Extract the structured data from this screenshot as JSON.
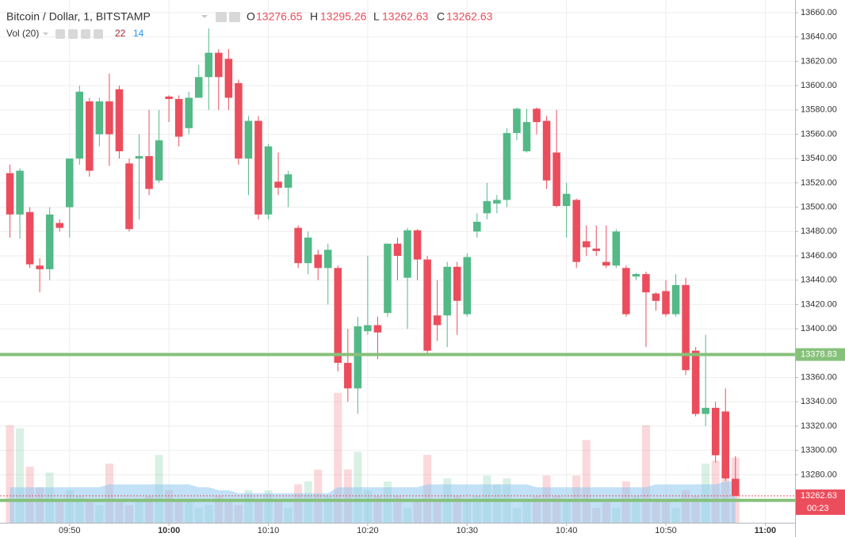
{
  "chart_data": {
    "type": "candlestick",
    "title": "Bitcoin / Dollar, 1, BITSTAMP",
    "ohlc_letters": {
      "open": "O",
      "high": "H",
      "low": "L",
      "close": "C"
    },
    "volume_title": "Vol (20)",
    "x": [
      "09:44",
      "09:45",
      "09:46",
      "09:47",
      "09:48",
      "09:49",
      "09:50",
      "09:51",
      "09:52",
      "09:53",
      "09:54",
      "09:55",
      "09:56",
      "09:57",
      "09:58",
      "09:59",
      "10:00",
      "10:01",
      "10:02",
      "10:03",
      "10:04",
      "10:05",
      "10:06",
      "10:07",
      "10:08",
      "10:09",
      "10:10",
      "10:11",
      "10:12",
      "10:13",
      "10:14",
      "10:15",
      "10:16",
      "10:17",
      "10:18",
      "10:19",
      "10:20",
      "10:21",
      "10:22",
      "10:23",
      "10:24",
      "10:25",
      "10:26",
      "10:27",
      "10:28",
      "10:29",
      "10:30",
      "10:31",
      "10:32",
      "10:33",
      "10:34",
      "10:35",
      "10:36",
      "10:37",
      "10:38",
      "10:39",
      "10:40",
      "10:41",
      "10:42",
      "10:43",
      "10:44",
      "10:45",
      "10:46",
      "10:47",
      "10:48",
      "10:49",
      "10:50",
      "10:51",
      "10:52",
      "10:53",
      "10:54",
      "10:55",
      "10:56",
      "10:57"
    ],
    "open": [
      13528,
      13494,
      13496,
      13452,
      13449,
      13487,
      13500,
      13540,
      13587,
      13560,
      13587,
      13597,
      13536,
      13540,
      13542,
      13522,
      13591,
      13589,
      13565,
      13590,
      13607,
      13627,
      13622,
      13602,
      13540,
      13571,
      13494,
      13521,
      13516,
      13483,
      13454,
      13461,
      13450,
      13450,
      13372,
      13351,
      13398,
      13403,
      13413,
      13470,
      13442,
      13481,
      13457,
      13411,
      13411,
      13451,
      13412,
      13480,
      13495,
      13503,
      13506,
      13561,
      13546,
      13581,
      13571,
      13545,
      13501,
      13506,
      13472,
      13466,
      13455,
      13452,
      13450,
      13443,
      13445,
      13429,
      13431,
      13412,
      13436,
      13382,
      13330,
      13335,
      13332,
      13276.65
    ],
    "high": [
      13535,
      13532,
      13500,
      13458,
      13500,
      13490,
      13540,
      13600,
      13590,
      13590,
      13610,
      13600,
      13540,
      13560,
      13580,
      13580,
      13592,
      13592,
      13595,
      13617,
      13647,
      13630,
      13630,
      13605,
      13575,
      13575,
      13552,
      13545,
      13530,
      13485,
      13480,
      13465,
      13470,
      13452,
      13400,
      13410,
      13460,
      13410,
      13470,
      13475,
      13483,
      13482,
      13460,
      13440,
      13455,
      13455,
      13462,
      13495,
      13520,
      13510,
      13565,
      13582,
      13581,
      13582,
      13575,
      13580,
      13520,
      13507,
      13485,
      13485,
      13485,
      13482,
      13452,
      13446,
      13447,
      13430,
      13440,
      13445,
      13442,
      13385,
      13395,
      13340,
      13351,
      13295.26
    ],
    "low": [
      13475,
      13474,
      13450,
      13430,
      13440,
      13480,
      13475,
      13535,
      13525,
      13550,
      13534,
      13540,
      13480,
      13490,
      13510,
      13520,
      13570,
      13550,
      13560,
      13590,
      13580,
      13580,
      13580,
      13535,
      13510,
      13490,
      13490,
      13510,
      13500,
      13450,
      13445,
      13440,
      13420,
      13365,
      13340,
      13330,
      13395,
      13375,
      13410,
      13440,
      13400,
      13440,
      13380,
      13390,
      13385,
      13395,
      13410,
      13475,
      13490,
      13495,
      13500,
      13555,
      13545,
      13560,
      13515,
      13500,
      13475,
      13450,
      13460,
      13460,
      13450,
      13450,
      13410,
      13440,
      13385,
      13415,
      13410,
      13410,
      13362,
      13328,
      13320,
      13290,
      13275,
      13262.63
    ],
    "close": [
      13494,
      13530,
      13453,
      13449,
      13494,
      13483,
      13540,
      13595,
      13530,
      13587,
      13560,
      13546,
      13482,
      13542,
      13515,
      13555,
      13589,
      13558,
      13590,
      13607,
      13627,
      13607,
      13590,
      13540,
      13571,
      13494,
      13550,
      13516,
      13527,
      13454,
      13475,
      13450,
      13465,
      13372,
      13351,
      13402,
      13403,
      13397,
      13470,
      13460,
      13481,
      13457,
      13382,
      13403,
      13451,
      13423,
      13459,
      13488,
      13505,
      13506,
      13561,
      13581,
      13570,
      13570,
      13522,
      13501,
      13511,
      13455,
      13467,
      13464,
      13452,
      13480,
      13412,
      13445,
      13430,
      13423,
      13412,
      13436,
      13366,
      13330,
      13335,
      13296,
      13277,
      13262.63
    ],
    "volume": [
      33,
      32,
      19,
      12,
      17,
      8,
      11,
      9,
      8,
      6,
      20,
      8,
      6,
      8,
      9,
      23,
      11,
      8,
      8,
      5,
      6,
      9,
      8,
      6,
      11,
      8,
      11,
      8,
      5,
      13,
      14,
      18,
      9,
      44,
      18,
      24,
      11,
      9,
      14,
      9,
      5,
      8,
      23,
      8,
      15,
      9,
      8,
      9,
      16,
      13,
      15,
      5,
      8,
      9,
      16,
      9,
      8,
      16,
      28,
      5,
      8,
      5,
      14,
      9,
      33,
      8,
      8,
      5,
      11,
      9,
      20,
      21,
      19,
      22
    ],
    "volume_ma": [
      12,
      12,
      12,
      12,
      12,
      12,
      12,
      12,
      12,
      12,
      13,
      13,
      13,
      13,
      13,
      13,
      13,
      13,
      13,
      12,
      12,
      11,
      11,
      10,
      10,
      10,
      10,
      10,
      10,
      10,
      10,
      10,
      10,
      12,
      12,
      12,
      12,
      12,
      12,
      12,
      12,
      12,
      13,
      13,
      13,
      13,
      13,
      13,
      13,
      13,
      13,
      13,
      13,
      12,
      12,
      12,
      12,
      12,
      12,
      12,
      12,
      12,
      12,
      12,
      12,
      13,
      13,
      13,
      13,
      13,
      13,
      13,
      14,
      14
    ],
    "volume_ylim": [
      0,
      177
    ],
    "xlim": [
      "09:43",
      "11:03"
    ],
    "xticks": [
      "09:50",
      "10:00",
      "10:10",
      "10:20",
      "10:30",
      "10:40",
      "10:50",
      "11:00"
    ],
    "ylim": [
      13240.5,
      13670.4
    ],
    "yticks": [
      {
        "value": 13280,
        "label": "13280.00"
      },
      {
        "value": 13300,
        "label": "13300.00"
      },
      {
        "value": 13320,
        "label": "13320.00"
      },
      {
        "value": 13340,
        "label": "13340.00"
      },
      {
        "value": 13360,
        "label": "13360.00"
      },
      {
        "value": 13380,
        "label": "13380.00"
      },
      {
        "value": 13400,
        "label": "13400.00"
      },
      {
        "value": 13420,
        "label": "13420.00"
      },
      {
        "value": 13440,
        "label": "13440.00"
      },
      {
        "value": 13460,
        "label": "13460.00"
      },
      {
        "value": 13480,
        "label": "13480.00"
      },
      {
        "value": 13500,
        "label": "13500.00"
      },
      {
        "value": 13520,
        "label": "13520.00"
      },
      {
        "value": 13540,
        "label": "13540.00"
      },
      {
        "value": 13560,
        "label": "13560.00"
      },
      {
        "value": 13580,
        "label": "13580.00"
      },
      {
        "value": 13600,
        "label": "13600.00"
      },
      {
        "value": 13620,
        "label": "13620.00"
      },
      {
        "value": 13640,
        "label": "13640.00"
      },
      {
        "value": 13660,
        "label": "13660.00"
      }
    ],
    "levels": [
      13378.83,
      13258.88
    ],
    "countdown": "00:23",
    "up_color": "#53b987",
    "down_color": "#eb4d5c",
    "level_color": "#86c17a",
    "ma_color": "#8fc9ee",
    "grid": true
  }
}
